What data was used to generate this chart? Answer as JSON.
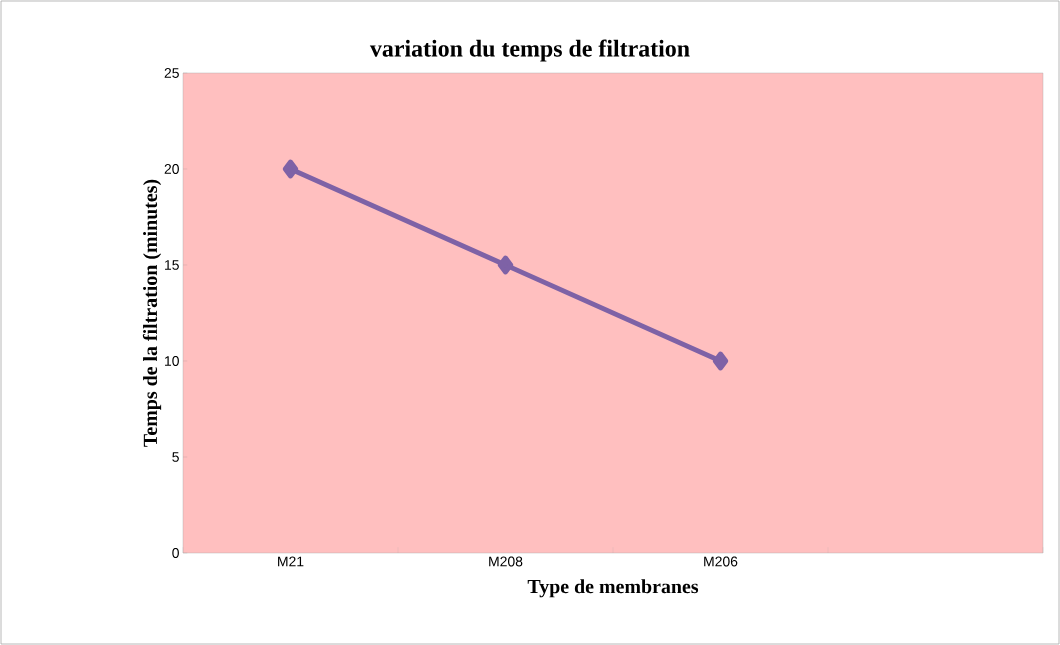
{
  "chart_data": {
    "type": "line",
    "title": "variation du temps de filtration",
    "xlabel": "Type de  membranes",
    "ylabel": "Temps de la filtration  (minutes)",
    "categories": [
      "M21",
      "M208",
      "M206",
      null
    ],
    "series": [
      {
        "color": "#7e62a6",
        "values": [
          20,
          15,
          10,
          null
        ]
      }
    ],
    "ylim": [
      0,
      25
    ],
    "yticks": [
      0,
      5,
      10,
      15,
      20,
      25
    ],
    "marker": "diamond",
    "line_style": "solid",
    "grid": false
  }
}
